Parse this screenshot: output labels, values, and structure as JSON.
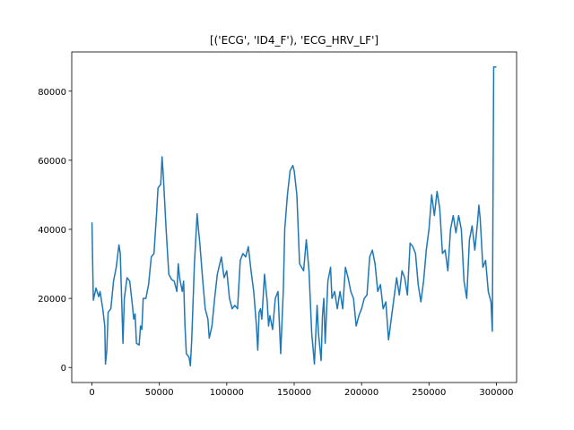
{
  "chart_data": {
    "type": "line",
    "title": "[('ECG', 'ID4_F'), 'ECG_HRV_LF']",
    "x": [
      0,
      1000,
      3000,
      5000,
      6000,
      8000,
      9500,
      10000,
      11000,
      12000,
      14000,
      16000,
      18000,
      20000,
      21000,
      22000,
      23000,
      24000,
      26000,
      28000,
      30000,
      31000,
      32000,
      33000,
      35000,
      36000,
      37000,
      38000,
      40000,
      42000,
      44000,
      46000,
      48000,
      49000,
      51000,
      52000,
      53000,
      55000,
      57000,
      59000,
      61000,
      63000,
      64000,
      65000,
      67000,
      68000,
      69000,
      70000,
      72000,
      73000,
      74000,
      76000,
      78000,
      79000,
      80000,
      82000,
      84000,
      86000,
      87000,
      89000,
      91000,
      93000,
      96000,
      98000,
      100000,
      102000,
      104000,
      106000,
      108000,
      110000,
      112000,
      114000,
      116000,
      118000,
      120000,
      122000,
      123000,
      124000,
      125000,
      126000,
      128000,
      130000,
      131000,
      132000,
      134000,
      136000,
      138000,
      140000,
      142000,
      143000,
      145000,
      147000,
      149000,
      150000,
      152000,
      154000,
      157000,
      159000,
      161000,
      163000,
      165000,
      167000,
      168000,
      170000,
      171000,
      172000,
      173000,
      175000,
      177000,
      178000,
      180000,
      182000,
      184000,
      186000,
      188000,
      190000,
      192000,
      194000,
      196000,
      198000,
      200000,
      202000,
      204000,
      206000,
      208000,
      210000,
      212000,
      214000,
      216000,
      218000,
      220000,
      222000,
      224000,
      226000,
      228000,
      230000,
      232000,
      234000,
      236000,
      238000,
      240000,
      242000,
      244000,
      246000,
      248000,
      250000,
      252000,
      254000,
      256000,
      258000,
      260000,
      262000,
      264000,
      266000,
      268000,
      270000,
      272000,
      274000,
      276000,
      278000,
      280000,
      282000,
      284000,
      286000,
      287000,
      288000,
      290000,
      292000,
      294000,
      296000,
      297000,
      298000,
      300000
    ],
    "series": [
      {
        "color": "#1f77b4",
        "values": [
          42000,
          19500,
          23000,
          20500,
          22000,
          17000,
          12000,
          1000,
          5000,
          16000,
          17000,
          25000,
          29000,
          35500,
          33000,
          20000,
          7000,
          20000,
          26000,
          25000,
          18000,
          14000,
          15500,
          7000,
          6500,
          12000,
          11000,
          20000,
          20000,
          24000,
          32000,
          33000,
          45000,
          52000,
          53000,
          61000,
          55000,
          40000,
          27000,
          25500,
          25000,
          22000,
          30000,
          26000,
          22000,
          25000,
          12000,
          4000,
          3000,
          500,
          8000,
          30000,
          44500,
          40000,
          36000,
          26000,
          17000,
          14000,
          8500,
          12000,
          20000,
          27000,
          32000,
          26000,
          28000,
          20000,
          17000,
          18000,
          17000,
          31000,
          33000,
          32000,
          35000,
          28000,
          22000,
          12000,
          5000,
          16000,
          17000,
          14000,
          27000,
          19000,
          12000,
          15000,
          11000,
          20000,
          22000,
          4000,
          23000,
          40000,
          50000,
          57000,
          58500,
          57000,
          50000,
          30000,
          28000,
          37000,
          28000,
          10000,
          1000,
          18000,
          10000,
          2000,
          15000,
          20000,
          7000,
          25000,
          29000,
          20000,
          22000,
          17000,
          22000,
          17000,
          29000,
          26000,
          22000,
          20000,
          12000,
          15000,
          17000,
          20000,
          21000,
          32000,
          34000,
          30000,
          22000,
          24000,
          17000,
          19000,
          8000,
          14000,
          20000,
          26000,
          21000,
          28000,
          26000,
          21000,
          36000,
          35000,
          33000,
          24000,
          19000,
          25000,
          34000,
          40000,
          50000,
          44000,
          51000,
          46000,
          33000,
          34000,
          28000,
          40000,
          44000,
          39000,
          44000,
          40000,
          25000,
          20000,
          37000,
          41000,
          34000,
          42000,
          47000,
          43000,
          29000,
          31000,
          22000,
          19000,
          10500,
          87000,
          87000
        ]
      }
    ],
    "xlim": [
      -15000,
      315000
    ],
    "ylim": [
      -4350,
      91350
    ],
    "xticks": [
      0,
      50000,
      100000,
      150000,
      200000,
      250000,
      300000
    ],
    "yticks": [
      0,
      20000,
      40000,
      60000,
      80000
    ]
  }
}
